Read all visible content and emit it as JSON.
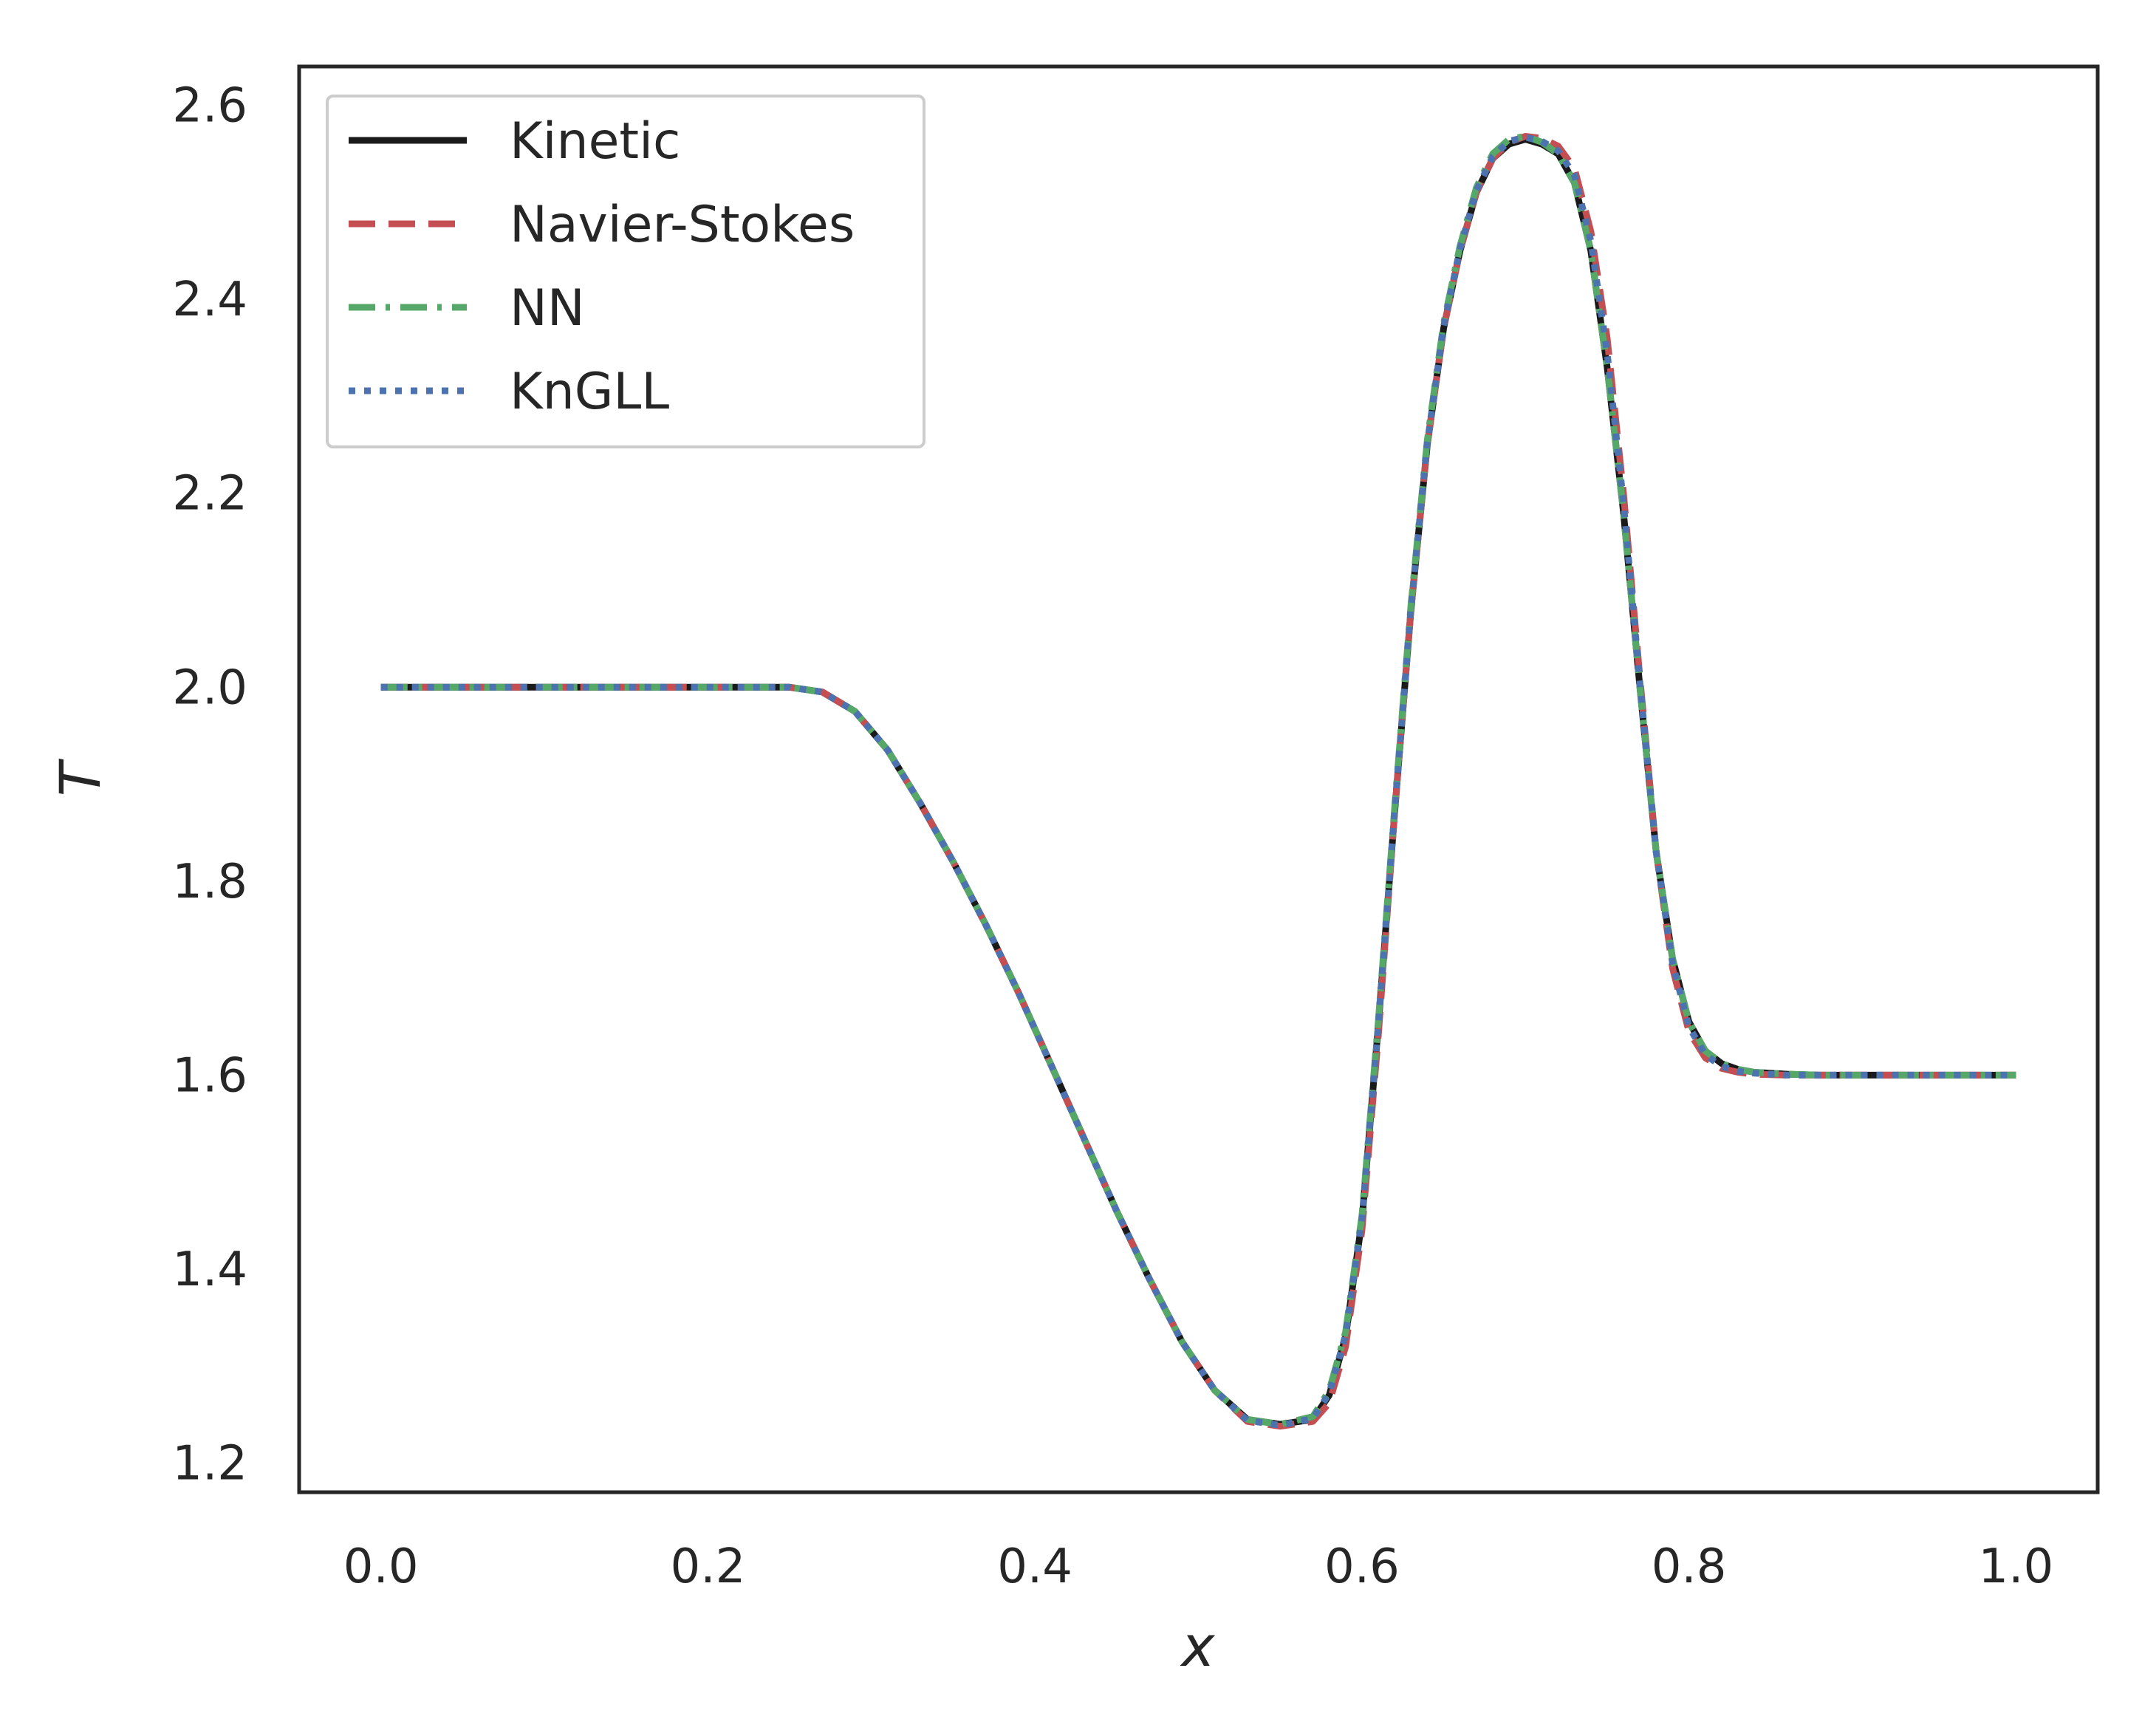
{
  "chart_data": {
    "type": "line",
    "xlabel": "x",
    "ylabel": "T",
    "xlim": [
      -0.05,
      1.05
    ],
    "ylim": [
      1.17,
      2.64
    ],
    "xticks": [
      "0.0",
      "0.2",
      "0.4",
      "0.6",
      "0.8",
      "1.0"
    ],
    "yticks": [
      "1.2",
      "1.4",
      "1.6",
      "1.8",
      "2.0",
      "2.2",
      "2.4",
      "2.6"
    ],
    "grid": false,
    "legend_position": "top-left",
    "x": [
      0.0,
      0.05,
      0.1,
      0.15,
      0.2,
      0.25,
      0.27,
      0.29,
      0.31,
      0.33,
      0.35,
      0.37,
      0.39,
      0.41,
      0.43,
      0.45,
      0.47,
      0.49,
      0.51,
      0.53,
      0.55,
      0.57,
      0.58,
      0.59,
      0.6,
      0.61,
      0.62,
      0.63,
      0.64,
      0.65,
      0.66,
      0.67,
      0.68,
      0.69,
      0.7,
      0.71,
      0.72,
      0.73,
      0.74,
      0.75,
      0.76,
      0.77,
      0.78,
      0.79,
      0.8,
      0.81,
      0.82,
      0.83,
      0.84,
      0.86,
      0.88,
      0.9,
      0.95,
      1.0
    ],
    "series": [
      {
        "name": "Kinetic",
        "color": "#1a1a1a",
        "dash": "solid",
        "values": [
          2.0,
          2.0,
          2.0,
          2.0,
          2.0,
          2.0,
          1.995,
          1.975,
          1.935,
          1.88,
          1.82,
          1.755,
          1.685,
          1.61,
          1.535,
          1.46,
          1.39,
          1.325,
          1.275,
          1.245,
          1.24,
          1.245,
          1.27,
          1.33,
          1.45,
          1.65,
          1.87,
          2.08,
          2.25,
          2.37,
          2.45,
          2.51,
          2.545,
          2.56,
          2.565,
          2.56,
          2.55,
          2.52,
          2.45,
          2.33,
          2.18,
          2.0,
          1.83,
          1.72,
          1.655,
          1.625,
          1.612,
          1.606,
          1.603,
          1.601,
          1.6,
          1.6,
          1.6,
          1.6
        ]
      },
      {
        "name": "Navier-Stokes",
        "color": "#c44e52",
        "dash": "dashed",
        "values": [
          2.0,
          2.0,
          2.0,
          2.0,
          2.0,
          2.0,
          1.995,
          1.975,
          1.935,
          1.88,
          1.82,
          1.755,
          1.685,
          1.61,
          1.535,
          1.46,
          1.39,
          1.325,
          1.275,
          1.243,
          1.238,
          1.243,
          1.262,
          1.32,
          1.44,
          1.64,
          1.87,
          2.08,
          2.25,
          2.37,
          2.45,
          2.51,
          2.545,
          2.562,
          2.568,
          2.566,
          2.558,
          2.535,
          2.47,
          2.36,
          2.2,
          2.01,
          1.83,
          1.71,
          1.645,
          1.618,
          1.607,
          1.603,
          1.601,
          1.6,
          1.6,
          1.6,
          1.6,
          1.6
        ]
      },
      {
        "name": "NN",
        "color": "#55a868",
        "dash": "dashdot",
        "values": [
          2.0,
          2.0,
          2.0,
          2.0,
          2.0,
          2.0,
          1.995,
          1.975,
          1.935,
          1.88,
          1.82,
          1.755,
          1.685,
          1.61,
          1.535,
          1.46,
          1.39,
          1.325,
          1.275,
          1.245,
          1.24,
          1.248,
          1.275,
          1.335,
          1.455,
          1.655,
          1.875,
          2.085,
          2.255,
          2.375,
          2.455,
          2.515,
          2.55,
          2.565,
          2.568,
          2.562,
          2.55,
          2.52,
          2.45,
          2.33,
          2.18,
          2.0,
          1.83,
          1.72,
          1.655,
          1.625,
          1.612,
          1.606,
          1.603,
          1.601,
          1.6,
          1.6,
          1.6,
          1.6
        ]
      },
      {
        "name": "KnGLL",
        "color": "#4c72b0",
        "dash": "dotted",
        "values": [
          2.0,
          2.0,
          2.0,
          2.0,
          2.0,
          2.0,
          1.995,
          1.975,
          1.935,
          1.88,
          1.82,
          1.755,
          1.685,
          1.61,
          1.535,
          1.46,
          1.39,
          1.325,
          1.275,
          1.244,
          1.239,
          1.246,
          1.272,
          1.332,
          1.452,
          1.652,
          1.872,
          2.082,
          2.252,
          2.372,
          2.452,
          2.512,
          2.547,
          2.563,
          2.567,
          2.563,
          2.553,
          2.528,
          2.46,
          2.345,
          2.19,
          2.005,
          1.83,
          1.715,
          1.65,
          1.621,
          1.609,
          1.604,
          1.602,
          1.6,
          1.6,
          1.6,
          1.6,
          1.6
        ]
      }
    ]
  }
}
